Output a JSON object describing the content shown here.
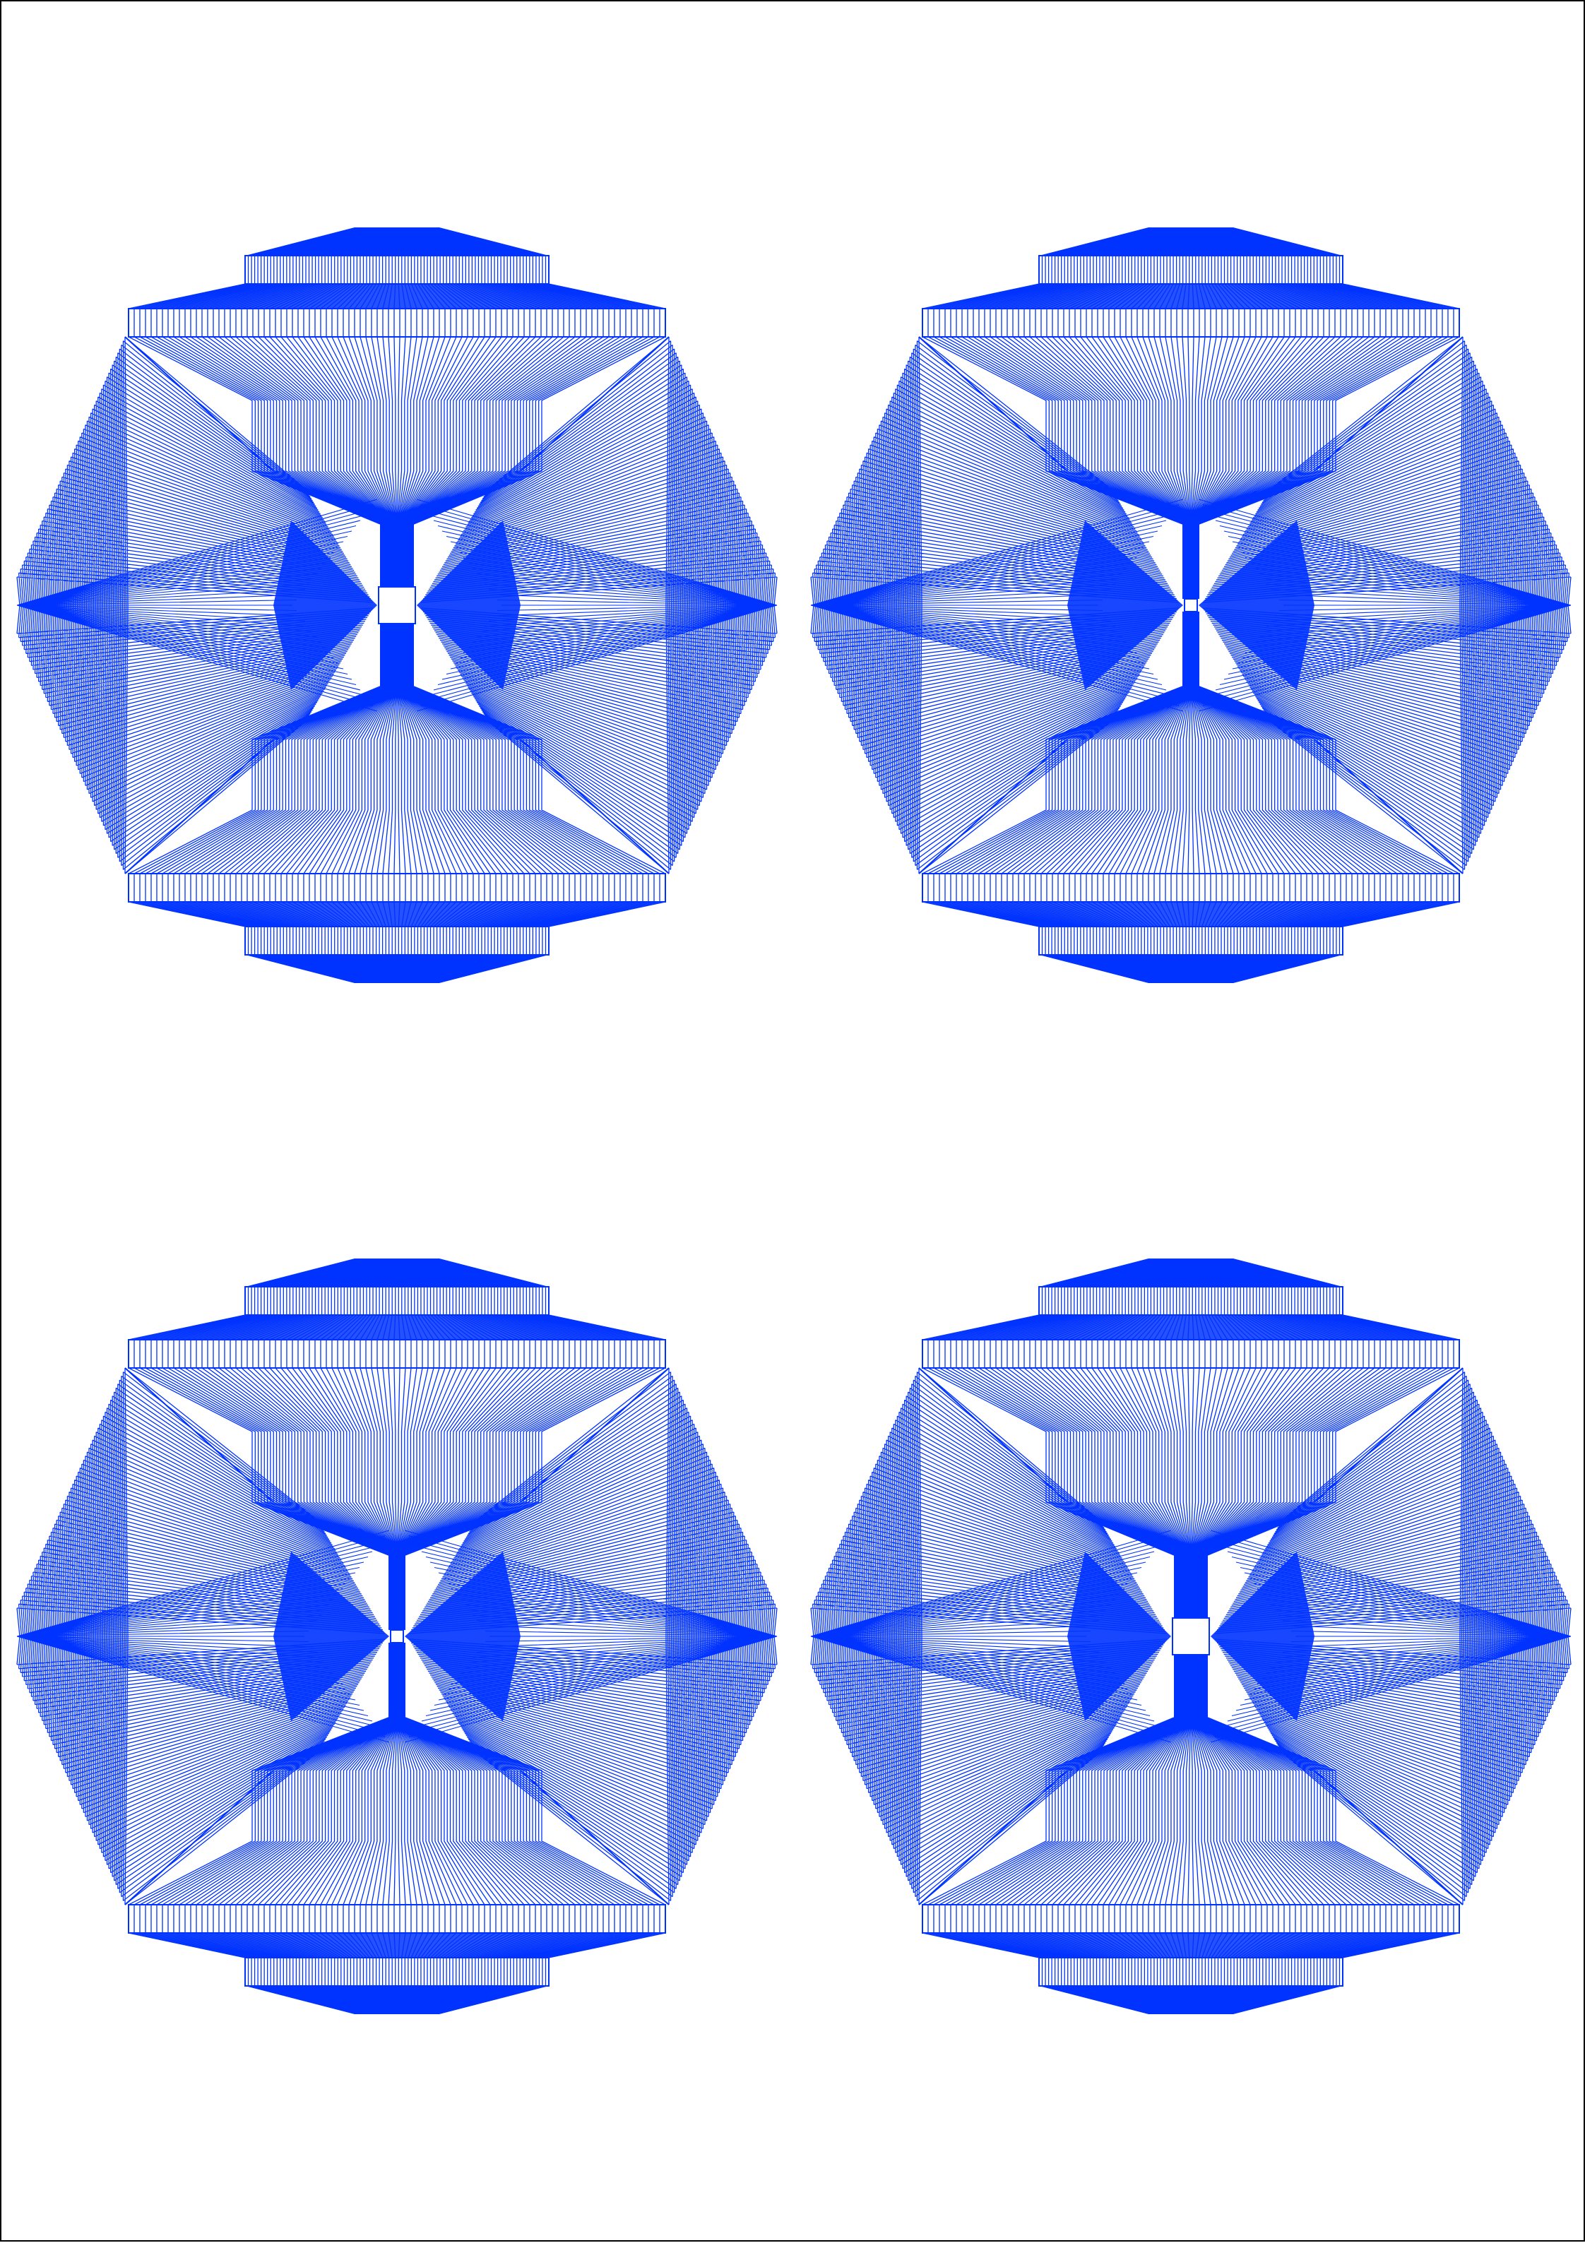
{
  "page": {
    "background_color": "#ffffff",
    "border_color": "#000000"
  },
  "artwork": {
    "stroke_color": "#0033ff",
    "fill_color": "#0033ff",
    "figures": [
      {
        "name": "string-art-top-left",
        "variant": "large-center-square",
        "rows": 95,
        "side_lines": 60
      },
      {
        "name": "string-art-top-right",
        "variant": "small-center-square",
        "rows": 95,
        "side_lines": 60
      },
      {
        "name": "string-art-bottom-left",
        "variant": "small-center-square",
        "rows": 95,
        "side_lines": 60
      },
      {
        "name": "string-art-bottom-right",
        "variant": "large-center-square",
        "rows": 95,
        "side_lines": 60
      }
    ]
  }
}
